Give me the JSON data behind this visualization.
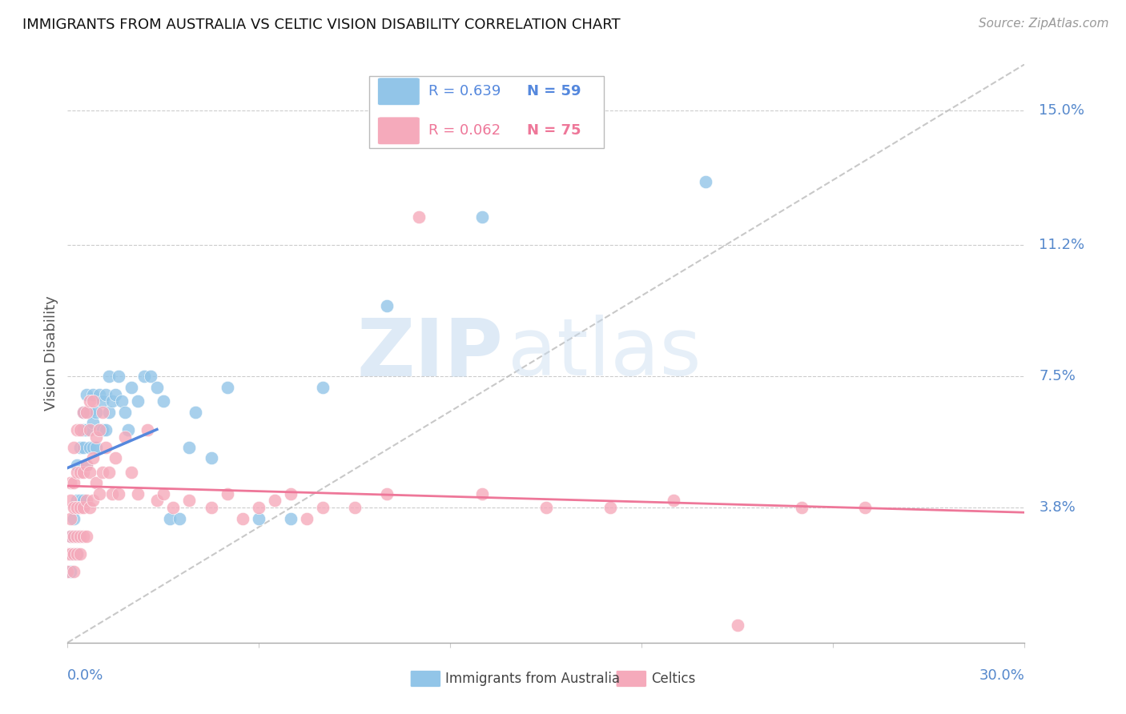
{
  "title": "IMMIGRANTS FROM AUSTRALIA VS CELTIC VISION DISABILITY CORRELATION CHART",
  "source": "Source: ZipAtlas.com",
  "ylabel": "Vision Disability",
  "ytick_labels": [
    "3.8%",
    "7.5%",
    "11.2%",
    "15.0%"
  ],
  "ytick_values": [
    0.038,
    0.075,
    0.112,
    0.15
  ],
  "xlim": [
    0.0,
    0.3
  ],
  "ylim": [
    0.0,
    0.163
  ],
  "blue_color": "#92C5E8",
  "pink_color": "#F5AABB",
  "blue_line_color": "#5588DD",
  "pink_line_color": "#EE7799",
  "diagonal_color": "#BBBBBB",
  "legend_R_blue": "R = 0.639",
  "legend_N_blue": "N = 59",
  "legend_R_pink": "R = 0.062",
  "legend_N_pink": "N = 75",
  "watermark_zip": "ZIP",
  "watermark_atlas": "atlas",
  "background_color": "#FFFFFF",
  "blue_scatter_x": [
    0.001,
    0.001,
    0.001,
    0.002,
    0.002,
    0.002,
    0.003,
    0.003,
    0.003,
    0.003,
    0.004,
    0.004,
    0.004,
    0.005,
    0.005,
    0.005,
    0.005,
    0.006,
    0.006,
    0.006,
    0.007,
    0.007,
    0.008,
    0.008,
    0.008,
    0.009,
    0.009,
    0.01,
    0.01,
    0.011,
    0.011,
    0.012,
    0.012,
    0.013,
    0.013,
    0.014,
    0.015,
    0.016,
    0.017,
    0.018,
    0.019,
    0.02,
    0.022,
    0.024,
    0.026,
    0.028,
    0.03,
    0.032,
    0.035,
    0.038,
    0.04,
    0.045,
    0.05,
    0.06,
    0.07,
    0.08,
    0.1,
    0.13,
    0.2
  ],
  "blue_scatter_y": [
    0.02,
    0.025,
    0.03,
    0.025,
    0.03,
    0.035,
    0.025,
    0.03,
    0.04,
    0.05,
    0.03,
    0.04,
    0.055,
    0.04,
    0.055,
    0.06,
    0.065,
    0.05,
    0.06,
    0.07,
    0.055,
    0.065,
    0.055,
    0.062,
    0.07,
    0.055,
    0.065,
    0.06,
    0.07,
    0.06,
    0.068,
    0.06,
    0.07,
    0.065,
    0.075,
    0.068,
    0.07,
    0.075,
    0.068,
    0.065,
    0.06,
    0.072,
    0.068,
    0.075,
    0.075,
    0.072,
    0.068,
    0.035,
    0.035,
    0.055,
    0.065,
    0.052,
    0.072,
    0.035,
    0.035,
    0.072,
    0.095,
    0.12,
    0.13
  ],
  "pink_scatter_x": [
    0.0,
    0.0,
    0.001,
    0.001,
    0.001,
    0.001,
    0.001,
    0.002,
    0.002,
    0.002,
    0.002,
    0.002,
    0.002,
    0.003,
    0.003,
    0.003,
    0.003,
    0.003,
    0.004,
    0.004,
    0.004,
    0.004,
    0.004,
    0.005,
    0.005,
    0.005,
    0.005,
    0.006,
    0.006,
    0.006,
    0.006,
    0.007,
    0.007,
    0.007,
    0.007,
    0.008,
    0.008,
    0.008,
    0.009,
    0.009,
    0.01,
    0.01,
    0.011,
    0.011,
    0.012,
    0.013,
    0.014,
    0.015,
    0.016,
    0.018,
    0.02,
    0.022,
    0.025,
    0.028,
    0.03,
    0.033,
    0.038,
    0.045,
    0.05,
    0.055,
    0.06,
    0.065,
    0.07,
    0.075,
    0.08,
    0.09,
    0.1,
    0.11,
    0.13,
    0.15,
    0.17,
    0.19,
    0.21,
    0.23,
    0.25
  ],
  "pink_scatter_y": [
    0.02,
    0.025,
    0.025,
    0.03,
    0.035,
    0.04,
    0.045,
    0.02,
    0.025,
    0.03,
    0.038,
    0.045,
    0.055,
    0.025,
    0.03,
    0.038,
    0.048,
    0.06,
    0.025,
    0.03,
    0.038,
    0.048,
    0.06,
    0.03,
    0.038,
    0.048,
    0.065,
    0.03,
    0.04,
    0.05,
    0.065,
    0.038,
    0.048,
    0.06,
    0.068,
    0.04,
    0.052,
    0.068,
    0.045,
    0.058,
    0.042,
    0.06,
    0.048,
    0.065,
    0.055,
    0.048,
    0.042,
    0.052,
    0.042,
    0.058,
    0.048,
    0.042,
    0.06,
    0.04,
    0.042,
    0.038,
    0.04,
    0.038,
    0.042,
    0.035,
    0.038,
    0.04,
    0.042,
    0.035,
    0.038,
    0.038,
    0.042,
    0.12,
    0.042,
    0.038,
    0.038,
    0.04,
    0.005,
    0.038,
    0.038
  ]
}
